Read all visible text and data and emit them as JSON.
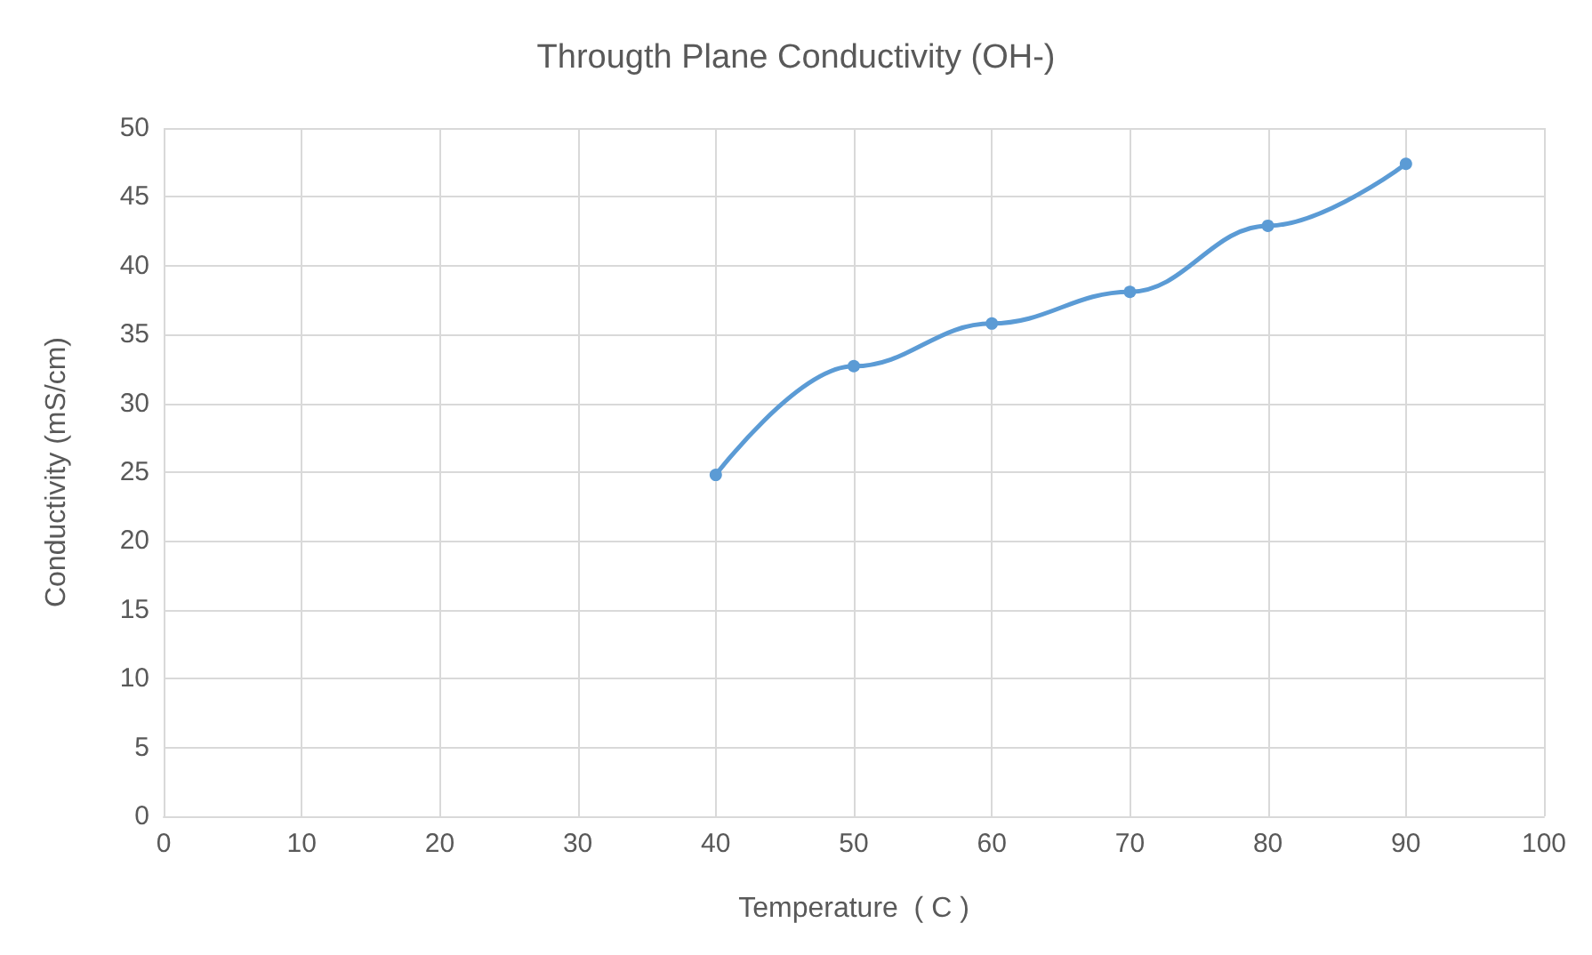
{
  "chart_data": {
    "type": "line",
    "title": "Througth Plane Conductivity (OH-)",
    "xlabel": "Temperature  ( C )",
    "ylabel": "Conductivity (mS/cm)",
    "x": [
      40,
      50,
      60,
      70,
      80,
      90
    ],
    "series": [
      {
        "color": "#5b9bd5",
        "values": [
          24.8,
          32.7,
          35.8,
          38.1,
          42.9,
          47.4
        ]
      }
    ],
    "xlim": [
      0,
      100
    ],
    "xticks": [
      0,
      10,
      20,
      30,
      40,
      50,
      60,
      70,
      80,
      90,
      100
    ],
    "ylim": [
      0,
      50
    ],
    "yticks": [
      0,
      5,
      10,
      15,
      20,
      25,
      30,
      35,
      40,
      45,
      50
    ],
    "grid": true,
    "marker": "circle",
    "line_style": "solid"
  }
}
